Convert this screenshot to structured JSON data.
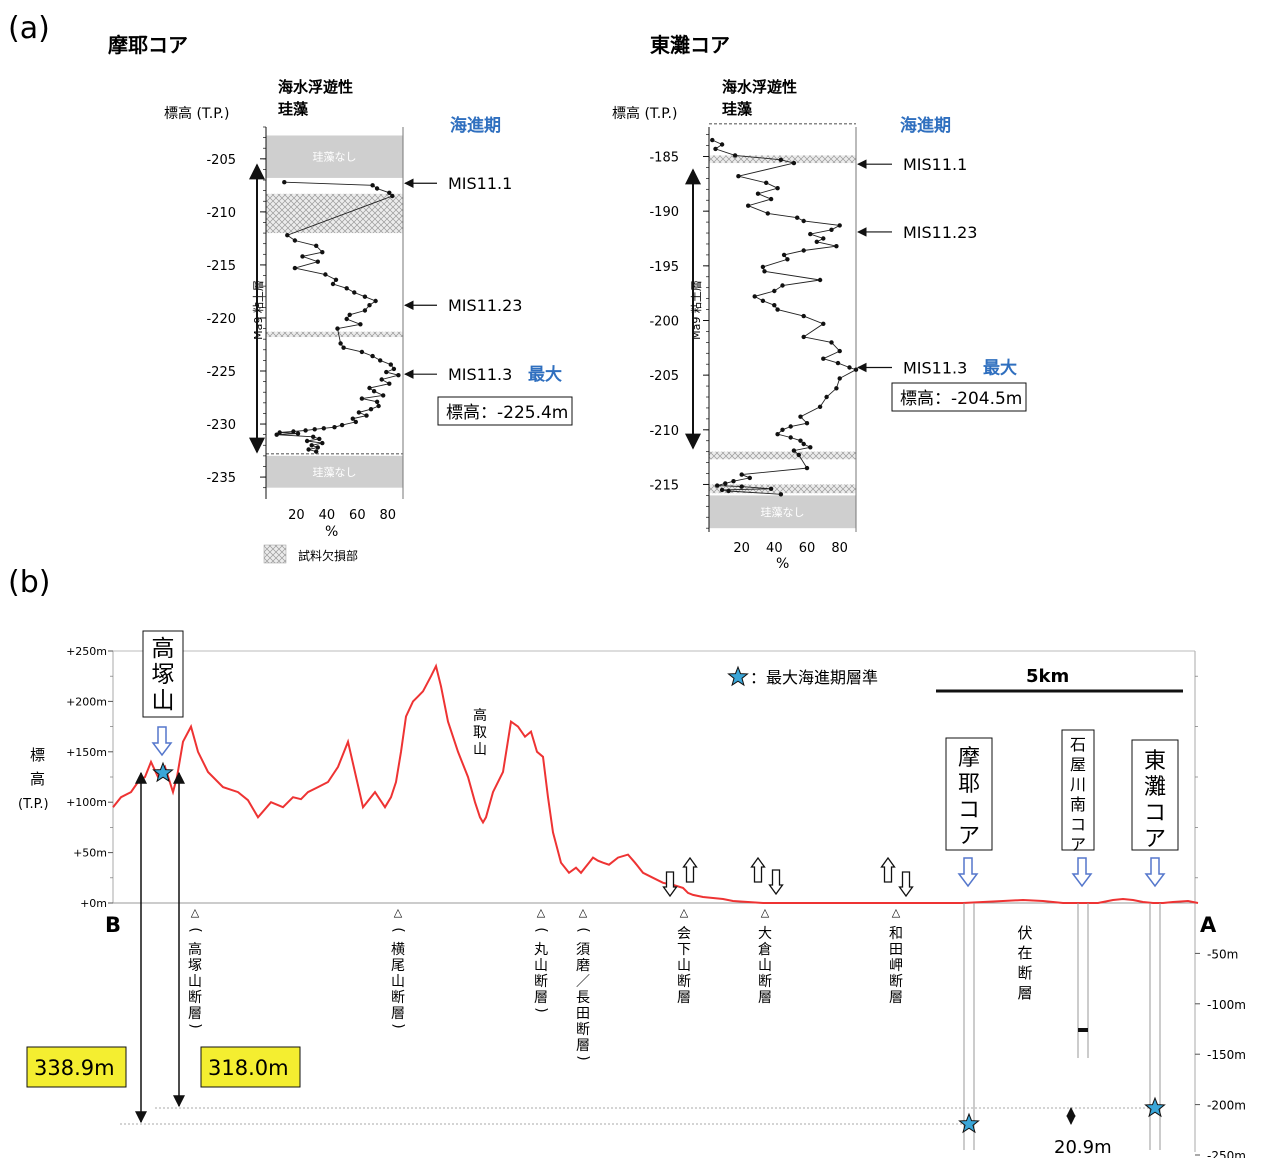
{
  "panel_a": {
    "label": "(a)",
    "yaxis_label": "標高 (T.P.)",
    "xaxis_unit": "%",
    "column_title_lines": [
      "海水浮遊性",
      "珪藻"
    ],
    "transgression_label": "海進期",
    "legend_missing": "試料欠損部",
    "no_diatom_label": "珪藻なし",
    "clay_layer_label": "Ma9 粘土層",
    "maximum_label": "最大",
    "colors": {
      "blue_text": "#2f6fbf",
      "gray_band": "#cfcfcf"
    }
  },
  "panel_b": {
    "label": "(b)",
    "yaxis_label_chars": [
      "標",
      "高"
    ],
    "yaxis_label_unit": "(T.P.)",
    "left_ticks": [
      "+250m",
      "+200m",
      "+150m",
      "+100m",
      "+50m",
      "+0m"
    ],
    "right_ticks": [
      "-50m",
      "-100m",
      "-150m",
      "-200m",
      "-250m"
    ],
    "end_left": "B",
    "end_right": "A",
    "star_legend": "：最大海進期層準",
    "scale_label": "5km",
    "boxes": {
      "takatsuka": "高塚山",
      "maya": "摩耶コア",
      "ishiya": "石屋川南コア",
      "higashinada": "東灘コア"
    },
    "peak_label": "高取山",
    "faults": [
      "(高塚山断層)",
      "(横尾山断層)",
      "(丸山断層)",
      "(須磨／長田断層)",
      "会下山断層",
      "大倉山断層",
      "和田岬断層"
    ],
    "buried_fault": "伏在断層",
    "heights": {
      "h1": "338.9m",
      "h2": "318.0m",
      "diff": "20.9m"
    },
    "colors": {
      "profile": "#ee3333",
      "highlight": "#f4ee30",
      "star": "#3aa6d8",
      "arrow_outline": "#5577cc"
    }
  },
  "chart_data": [
    {
      "type": "line",
      "title": "摩耶コア",
      "x_label": "%",
      "y_label": "標高 (T.P.)",
      "xlim": [
        0,
        90
      ],
      "ylim": [
        -237,
        -202
      ],
      "x_ticks": [
        "20",
        "40",
        "60",
        "80"
      ],
      "y_ticks": [
        "-205",
        "-210",
        "-215",
        "-220",
        "-225",
        "-230",
        "-235"
      ],
      "series": [
        {
          "x": [
            12,
            70,
            73,
            81,
            83,
            14,
            19,
            33,
            37,
            24,
            34,
            19,
            39,
            46,
            44,
            53,
            58,
            65,
            72,
            68,
            65,
            55,
            53,
            62,
            47,
            49,
            51,
            63,
            70,
            75,
            82,
            84,
            79,
            87,
            76,
            81,
            68,
            71,
            77,
            63,
            73,
            74,
            69,
            61,
            66,
            57,
            59,
            50,
            45,
            38,
            32,
            26,
            18,
            9,
            21,
            7,
            31,
            35,
            27,
            37,
            30,
            34,
            28,
            33
          ],
          "y": [
            -207.2,
            -207.5,
            -207.8,
            -208.2,
            -208.5,
            -212.2,
            -212.7,
            -213.2,
            -213.8,
            -214.2,
            -214.7,
            -215.3,
            -215.9,
            -216.4,
            -216.8,
            -217.2,
            -217.6,
            -218.0,
            -218.4,
            -218.8,
            -219.3,
            -219.7,
            -220.1,
            -220.6,
            -221.0,
            -222.4,
            -222.8,
            -223.2,
            -223.6,
            -224.0,
            -224.4,
            -224.8,
            -225.1,
            -225.4,
            -225.8,
            -226.2,
            -226.6,
            -226.9,
            -227.3,
            -227.6,
            -227.9,
            -228.3,
            -228.6,
            -228.9,
            -229.2,
            -229.5,
            -229.8,
            -230.1,
            -230.3,
            -230.4,
            -230.5,
            -230.6,
            -230.7,
            -230.8,
            -230.9,
            -231.0,
            -231.2,
            -231.4,
            -231.6,
            -231.8,
            -232.0,
            -232.2,
            -232.4,
            -232.6
          ]
        }
      ],
      "bands": [
        {
          "kind": "no_diatom",
          "top": -202.8,
          "bottom": -206.8
        },
        {
          "kind": "missing",
          "top": -208.3,
          "bottom": -212.0
        },
        {
          "kind": "missing",
          "top": -221.3,
          "bottom": -221.8
        },
        {
          "kind": "line",
          "at": -232.8
        },
        {
          "kind": "no_diatom",
          "top": -233.0,
          "bottom": -236.0
        }
      ],
      "annotations": [
        {
          "text": "MIS11.1",
          "y": -207.3
        },
        {
          "text": "MIS11.23",
          "y": -218.8
        },
        {
          "text": "MIS11.3",
          "y": -225.3,
          "max": true,
          "elev": "標高：-225.4m"
        }
      ]
    },
    {
      "type": "line",
      "title": "東灘コア",
      "x_label": "%",
      "y_label": "標高 (T.P.)",
      "xlim": [
        0,
        90
      ],
      "ylim": [
        -219.5,
        -182
      ],
      "x_ticks": [
        "20",
        "40",
        "60",
        "80"
      ],
      "y_ticks": [
        "-185",
        "-190",
        "-195",
        "-200",
        "-205",
        "-210",
        "-215"
      ],
      "series": [
        {
          "x": [
            2,
            8,
            4,
            16,
            44,
            52,
            18,
            35,
            42,
            30,
            38,
            24,
            36,
            54,
            58,
            80,
            75,
            62,
            70,
            66,
            78,
            58,
            46,
            48,
            33,
            34,
            68,
            45,
            40,
            28,
            33,
            40,
            42,
            58,
            70,
            58,
            75,
            80,
            70,
            79,
            86,
            90,
            80,
            78,
            72,
            68,
            56,
            60,
            50,
            45,
            42,
            50,
            56,
            58,
            62,
            52,
            55,
            60,
            20,
            25,
            15,
            10,
            5,
            20,
            38,
            8,
            12,
            44
          ],
          "y": [
            -183.5,
            -183.9,
            -184.3,
            -184.9,
            -185.3,
            -185.6,
            -186.8,
            -187.4,
            -187.9,
            -188.4,
            -188.9,
            -189.5,
            -190.2,
            -190.6,
            -190.9,
            -191.3,
            -191.7,
            -192.1,
            -192.5,
            -192.8,
            -193.2,
            -193.6,
            -194.0,
            -194.4,
            -195.1,
            -195.5,
            -196.3,
            -196.8,
            -197.3,
            -197.8,
            -198.2,
            -198.6,
            -199.0,
            -199.6,
            -200.3,
            -201.5,
            -202.0,
            -202.8,
            -203.5,
            -203.9,
            -204.3,
            -204.5,
            -205.3,
            -206.2,
            -207.0,
            -207.9,
            -208.8,
            -209.4,
            -209.7,
            -210.0,
            -210.4,
            -210.7,
            -211.0,
            -211.3,
            -211.6,
            -211.9,
            -212.3,
            -213.5,
            -214.1,
            -214.4,
            -214.7,
            -214.9,
            -215.1,
            -215.2,
            -215.4,
            -215.5,
            -215.6,
            -215.9
          ]
        }
      ],
      "bands": [
        {
          "kind": "line",
          "at": -182.0
        },
        {
          "kind": "missing",
          "top": -184.9,
          "bottom": -185.6
        },
        {
          "kind": "missing",
          "top": -212.0,
          "bottom": -212.7
        },
        {
          "kind": "missing",
          "top": -215.0,
          "bottom": -215.8
        },
        {
          "kind": "no_diatom",
          "top": -216.0,
          "bottom": -219.0
        }
      ],
      "annotations": [
        {
          "text": "MIS11.1",
          "y": -185.7
        },
        {
          "text": "MIS11.23",
          "y": -191.9
        },
        {
          "text": "MIS11.3",
          "y": -204.3,
          "max": true,
          "elev": "標高：-204.5m"
        }
      ]
    },
    {
      "type": "line",
      "title": "",
      "x_label": "",
      "y_label": "標高 (T.P.)",
      "ylim": [
        -250,
        250
      ],
      "series": [
        {
          "x": [
            0,
            8,
            18,
            25,
            32,
            38,
            45,
            52,
            60,
            64,
            70,
            78,
            85,
            95,
            110,
            125,
            135,
            145,
            158,
            170,
            180,
            188,
            195,
            205,
            215,
            225,
            235,
            250,
            262,
            272,
            278,
            283,
            288,
            293,
            300,
            305,
            310,
            318,
            323,
            328,
            335,
            345,
            355,
            362,
            367,
            370,
            373,
            380,
            390,
            398,
            405,
            412,
            418,
            424,
            430,
            435,
            440,
            448,
            456,
            463,
            468,
            472,
            476,
            480,
            485,
            490,
            496,
            505,
            515,
            522,
            530,
            540,
            550,
            560,
            570,
            575,
            580,
            590,
            600,
            610,
            620,
            635,
            650,
            665,
            680,
            700,
            720,
            740,
            760,
            780,
            800,
            815,
            830,
            850,
            870,
            890,
            910,
            930,
            950,
            965,
            975,
            985,
            990,
            995,
            1000,
            1010,
            1020,
            1030,
            1040,
            1050,
            1060,
            1075,
            1085
          ],
          "y": [
            95,
            105,
            110,
            120,
            125,
            140,
            125,
            135,
            110,
            125,
            160,
            175,
            150,
            130,
            115,
            110,
            102,
            85,
            100,
            95,
            105,
            103,
            110,
            115,
            120,
            135,
            160,
            95,
            110,
            95,
            105,
            120,
            150,
            185,
            200,
            205,
            210,
            225,
            235,
            215,
            180,
            150,
            125,
            100,
            85,
            80,
            85,
            110,
            130,
            180,
            175,
            165,
            170,
            150,
            145,
            105,
            70,
            40,
            30,
            35,
            30,
            35,
            40,
            45,
            42,
            40,
            38,
            45,
            48,
            40,
            30,
            25,
            20,
            18,
            15,
            10,
            8,
            6,
            5,
            4,
            2,
            1,
            0,
            0,
            0,
            0,
            0,
            0,
            0,
            0,
            0,
            0,
            0,
            0,
            1,
            2,
            3,
            2,
            0,
            0,
            0,
            0,
            1,
            2,
            3,
            4,
            3,
            1,
            0,
            0,
            1,
            2,
            0
          ]
        }
      ]
    }
  ]
}
